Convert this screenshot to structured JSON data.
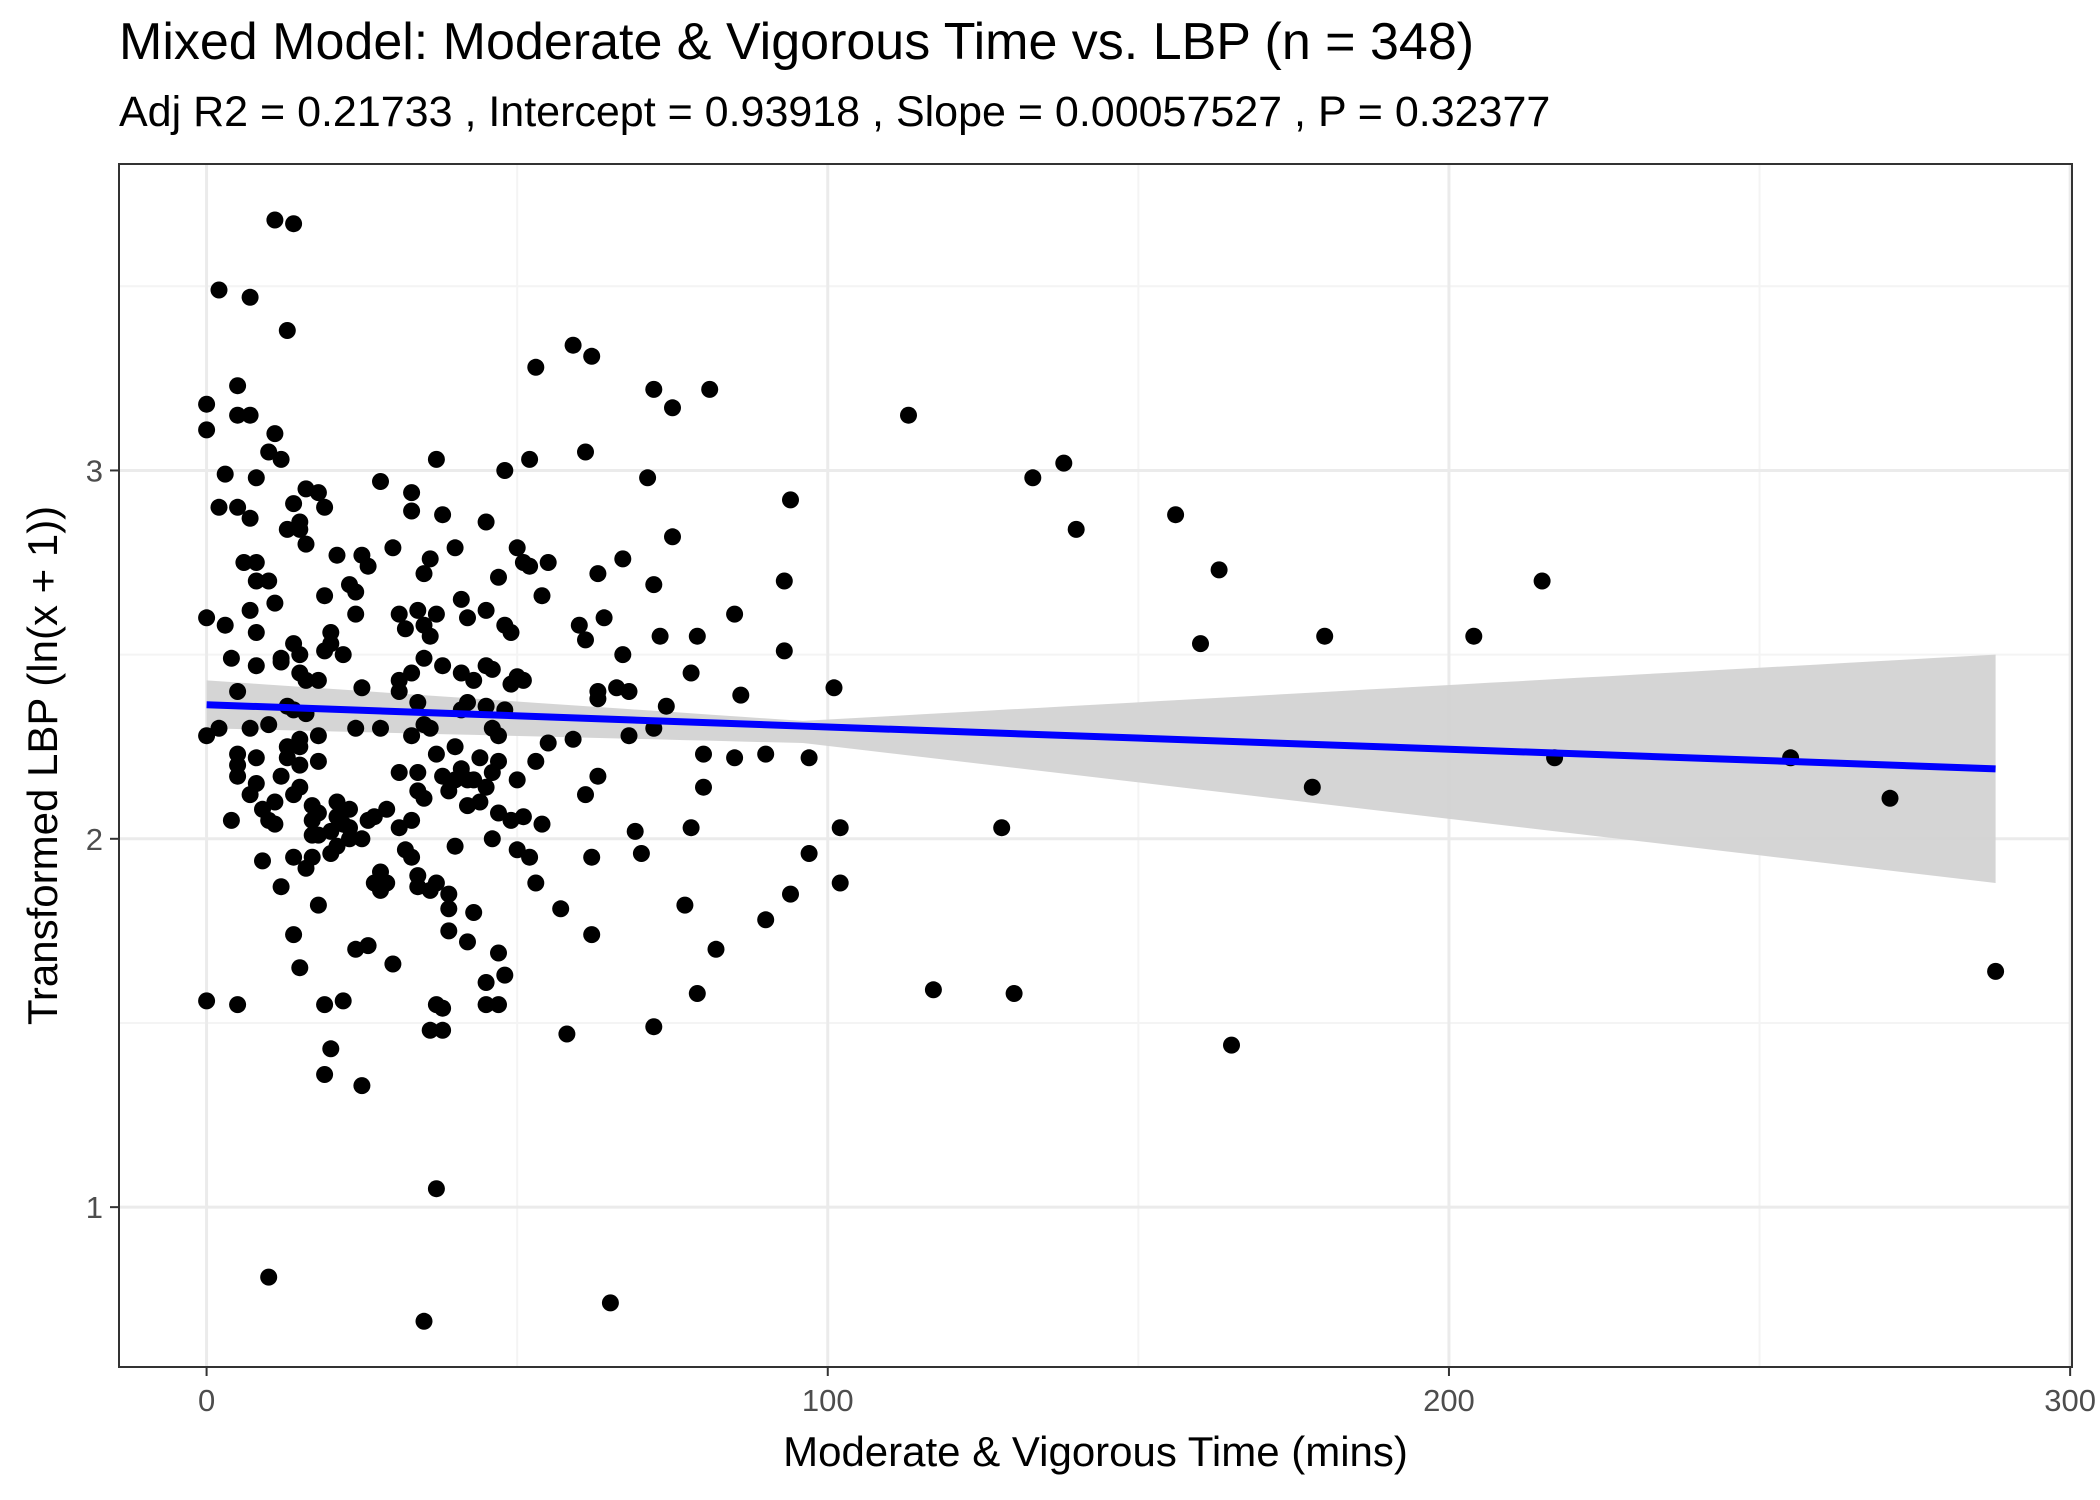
{
  "chart_data": {
    "type": "scatter",
    "title": "Mixed Model: Moderate & Vigorous Time vs. LBP (n = 348)",
    "subtitle": "Adj R2 =  0.21733 , Intercept =  0.93918 , Slope =  0.00057527 , P =  0.32377",
    "xlabel": "Moderate & Vigorous Time (mins)",
    "ylabel": "Transformed LBP (ln(x + 1))",
    "xlim": [
      -14.1,
      300.3
    ],
    "ylim": [
      0.566,
      3.832
    ],
    "x_ticks": [
      0,
      100,
      200,
      300
    ],
    "y_ticks": [
      1,
      2,
      3
    ],
    "x_tick_labels": [
      "0",
      "100",
      "200",
      "300"
    ],
    "y_tick_labels": [
      "1",
      "2",
      "3"
    ],
    "x_minor_grid": [
      50,
      150,
      250
    ],
    "y_minor_grid": [
      1.5,
      2.5,
      3.5
    ],
    "grid": true,
    "legend": "none",
    "colors": {
      "points": "#000000",
      "fit_line": "#0000ff",
      "confidence_band": "#d3d3d3",
      "panel_border": "#333333",
      "grid_major": "#ebebeb",
      "grid_minor": "#f4f4f4"
    },
    "fit_line": {
      "x": [
        0,
        288
      ],
      "y": [
        2.364,
        2.19
      ]
    },
    "confidence_band": {
      "x": [
        0,
        96,
        288
      ],
      "lower": [
        2.3,
        2.26,
        1.88
      ],
      "upper": [
        2.43,
        2.32,
        2.5
      ]
    },
    "points": [
      [
        0,
        3.18
      ],
      [
        0,
        3.11
      ],
      [
        0,
        2.6
      ],
      [
        0,
        2.28
      ],
      [
        0,
        1.56
      ],
      [
        2,
        3.49
      ],
      [
        2,
        2.9
      ],
      [
        2,
        2.3
      ],
      [
        3,
        2.99
      ],
      [
        3,
        2.58
      ],
      [
        4,
        2.49
      ],
      [
        4,
        2.05
      ],
      [
        5,
        3.23
      ],
      [
        5,
        3.15
      ],
      [
        5,
        2.9
      ],
      [
        5,
        2.4
      ],
      [
        5,
        2.23
      ],
      [
        5,
        2.2
      ],
      [
        5,
        2.17
      ],
      [
        5,
        1.55
      ],
      [
        6,
        2.75
      ],
      [
        7,
        3.47
      ],
      [
        7,
        3.15
      ],
      [
        7,
        2.87
      ],
      [
        7,
        2.62
      ],
      [
        7,
        2.3
      ],
      [
        7,
        2.12
      ],
      [
        8,
        2.98
      ],
      [
        8,
        2.75
      ],
      [
        8,
        2.7
      ],
      [
        8,
        2.56
      ],
      [
        8,
        2.47
      ],
      [
        8,
        2.22
      ],
      [
        8,
        2.15
      ],
      [
        9,
        2.08
      ],
      [
        9,
        1.94
      ],
      [
        10,
        3.05
      ],
      [
        10,
        2.7
      ],
      [
        10,
        2.31
      ],
      [
        10,
        2.05
      ],
      [
        10,
        0.81
      ],
      [
        11,
        3.68
      ],
      [
        11,
        3.1
      ],
      [
        11,
        2.64
      ],
      [
        11,
        2.1
      ],
      [
        11,
        2.04
      ],
      [
        12,
        3.03
      ],
      [
        12,
        2.49
      ],
      [
        12,
        2.48
      ],
      [
        12,
        2.17
      ],
      [
        12,
        1.87
      ],
      [
        13,
        3.38
      ],
      [
        13,
        2.84
      ],
      [
        13,
        2.36
      ],
      [
        13,
        2.25
      ],
      [
        13,
        2.22
      ],
      [
        14,
        3.67
      ],
      [
        14,
        2.91
      ],
      [
        14,
        2.53
      ],
      [
        14,
        2.35
      ],
      [
        14,
        2.12
      ],
      [
        14,
        1.95
      ],
      [
        14,
        1.74
      ],
      [
        15,
        2.86
      ],
      [
        15,
        2.84
      ],
      [
        15,
        2.5
      ],
      [
        15,
        2.45
      ],
      [
        15,
        2.27
      ],
      [
        15,
        2.25
      ],
      [
        15,
        2.2
      ],
      [
        15,
        2.14
      ],
      [
        15,
        1.65
      ],
      [
        16,
        2.95
      ],
      [
        16,
        2.8
      ],
      [
        16,
        2.43
      ],
      [
        16,
        2.34
      ],
      [
        16,
        1.92
      ],
      [
        17,
        2.09
      ],
      [
        17,
        2.05
      ],
      [
        17,
        2.01
      ],
      [
        17,
        1.95
      ],
      [
        18,
        2.94
      ],
      [
        18,
        2.43
      ],
      [
        18,
        2.28
      ],
      [
        18,
        2.21
      ],
      [
        18,
        2.07
      ],
      [
        18,
        2.01
      ],
      [
        18,
        1.82
      ],
      [
        19,
        2.9
      ],
      [
        19,
        2.66
      ],
      [
        19,
        2.51
      ],
      [
        19,
        1.55
      ],
      [
        19,
        1.36
      ],
      [
        20,
        2.56
      ],
      [
        20,
        2.53
      ],
      [
        20,
        2.02
      ],
      [
        20,
        1.96
      ],
      [
        20,
        1.43
      ],
      [
        21,
        2.77
      ],
      [
        21,
        2.1
      ],
      [
        21,
        2.06
      ],
      [
        21,
        1.98
      ],
      [
        22,
        2.5
      ],
      [
        22,
        2.04
      ],
      [
        22,
        1.56
      ],
      [
        23,
        2.69
      ],
      [
        23,
        2.08
      ],
      [
        23,
        2.03
      ],
      [
        23,
        2.0
      ],
      [
        24,
        2.67
      ],
      [
        24,
        2.61
      ],
      [
        24,
        2.3
      ],
      [
        24,
        1.7
      ],
      [
        25,
        2.77
      ],
      [
        25,
        2.41
      ],
      [
        25,
        2.0
      ],
      [
        25,
        1.33
      ],
      [
        26,
        2.74
      ],
      [
        26,
        2.05
      ],
      [
        26,
        1.71
      ],
      [
        27,
        2.06
      ],
      [
        27,
        1.88
      ],
      [
        28,
        2.97
      ],
      [
        28,
        2.3
      ],
      [
        28,
        1.86
      ],
      [
        28,
        1.91
      ],
      [
        29,
        2.08
      ],
      [
        29,
        1.88
      ],
      [
        30,
        2.79
      ],
      [
        30,
        1.66
      ],
      [
        31,
        2.61
      ],
      [
        31,
        2.43
      ],
      [
        31,
        2.4
      ],
      [
        31,
        2.18
      ],
      [
        31,
        2.03
      ],
      [
        32,
        2.57
      ],
      [
        32,
        1.97
      ],
      [
        33,
        2.94
      ],
      [
        33,
        2.89
      ],
      [
        33,
        2.45
      ],
      [
        33,
        2.28
      ],
      [
        33,
        2.05
      ],
      [
        33,
        1.95
      ],
      [
        34,
        2.62
      ],
      [
        34,
        2.37
      ],
      [
        34,
        2.18
      ],
      [
        34,
        2.13
      ],
      [
        34,
        1.9
      ],
      [
        34,
        1.87
      ],
      [
        35,
        2.72
      ],
      [
        35,
        2.58
      ],
      [
        35,
        2.49
      ],
      [
        35,
        2.31
      ],
      [
        35,
        2.11
      ],
      [
        35,
        0.69
      ],
      [
        36,
        2.76
      ],
      [
        36,
        2.55
      ],
      [
        36,
        2.3
      ],
      [
        36,
        1.48
      ],
      [
        36,
        1.86
      ],
      [
        37,
        3.03
      ],
      [
        37,
        2.61
      ],
      [
        37,
        2.23
      ],
      [
        37,
        1.88
      ],
      [
        37,
        1.55
      ],
      [
        37,
        1.05
      ],
      [
        38,
        2.88
      ],
      [
        38,
        2.47
      ],
      [
        38,
        2.17
      ],
      [
        38,
        1.48
      ],
      [
        38,
        1.54
      ],
      [
        39,
        2.13
      ],
      [
        39,
        1.85
      ],
      [
        39,
        1.81
      ],
      [
        39,
        1.75
      ],
      [
        40,
        2.79
      ],
      [
        40,
        2.25
      ],
      [
        40,
        2.16
      ],
      [
        40,
        1.98
      ],
      [
        41,
        2.65
      ],
      [
        41,
        2.45
      ],
      [
        41,
        2.35
      ],
      [
        41,
        2.19
      ],
      [
        42,
        2.6
      ],
      [
        42,
        2.37
      ],
      [
        42,
        2.16
      ],
      [
        42,
        2.09
      ],
      [
        42,
        1.72
      ],
      [
        43,
        2.43
      ],
      [
        43,
        2.16
      ],
      [
        43,
        1.8
      ],
      [
        44,
        2.22
      ],
      [
        44,
        2.1
      ],
      [
        45,
        2.86
      ],
      [
        45,
        2.62
      ],
      [
        45,
        2.47
      ],
      [
        45,
        2.36
      ],
      [
        45,
        2.14
      ],
      [
        45,
        1.55
      ],
      [
        45,
        1.61
      ],
      [
        46,
        2.46
      ],
      [
        46,
        2.3
      ],
      [
        46,
        2.0
      ],
      [
        46,
        2.18
      ],
      [
        47,
        2.71
      ],
      [
        47,
        2.28
      ],
      [
        47,
        2.21
      ],
      [
        47,
        2.07
      ],
      [
        47,
        1.69
      ],
      [
        47,
        1.55
      ],
      [
        48,
        3.0
      ],
      [
        48,
        2.58
      ],
      [
        48,
        2.35
      ],
      [
        48,
        1.63
      ],
      [
        49,
        2.56
      ],
      [
        49,
        2.42
      ],
      [
        49,
        2.05
      ],
      [
        50,
        2.79
      ],
      [
        50,
        2.44
      ],
      [
        50,
        2.16
      ],
      [
        50,
        1.97
      ],
      [
        51,
        2.75
      ],
      [
        51,
        2.43
      ],
      [
        51,
        2.06
      ],
      [
        52,
        3.03
      ],
      [
        52,
        2.74
      ],
      [
        52,
        1.95
      ],
      [
        53,
        3.28
      ],
      [
        53,
        2.21
      ],
      [
        53,
        1.88
      ],
      [
        54,
        2.66
      ],
      [
        54,
        2.04
      ],
      [
        55,
        2.75
      ],
      [
        55,
        2.26
      ],
      [
        57,
        1.81
      ],
      [
        58,
        1.47
      ],
      [
        59,
        3.34
      ],
      [
        59,
        2.27
      ],
      [
        60,
        2.58
      ],
      [
        61,
        3.05
      ],
      [
        61,
        2.54
      ],
      [
        61,
        2.12
      ],
      [
        62,
        3.31
      ],
      [
        62,
        1.95
      ],
      [
        62,
        1.74
      ],
      [
        63,
        2.72
      ],
      [
        63,
        2.4
      ],
      [
        63,
        2.38
      ],
      [
        63,
        2.17
      ],
      [
        64,
        2.6
      ],
      [
        65,
        0.74
      ],
      [
        66,
        2.41
      ],
      [
        67,
        2.76
      ],
      [
        67,
        2.5
      ],
      [
        68,
        2.4
      ],
      [
        68,
        2.28
      ],
      [
        69,
        2.02
      ],
      [
        70,
        1.96
      ],
      [
        71,
        2.98
      ],
      [
        72,
        3.22
      ],
      [
        72,
        2.69
      ],
      [
        72,
        2.3
      ],
      [
        72,
        1.49
      ],
      [
        73,
        2.55
      ],
      [
        74,
        2.36
      ],
      [
        75,
        3.17
      ],
      [
        75,
        2.82
      ],
      [
        77,
        1.82
      ],
      [
        78,
        2.45
      ],
      [
        78,
        2.03
      ],
      [
        79,
        2.55
      ],
      [
        79,
        1.58
      ],
      [
        80,
        2.23
      ],
      [
        80,
        2.14
      ],
      [
        81,
        3.22
      ],
      [
        82,
        1.7
      ],
      [
        85,
        2.61
      ],
      [
        85,
        2.22
      ],
      [
        86,
        2.39
      ],
      [
        90,
        2.23
      ],
      [
        90,
        1.78
      ],
      [
        93,
        2.51
      ],
      [
        93,
        2.7
      ],
      [
        94,
        2.92
      ],
      [
        94,
        1.85
      ],
      [
        97,
        2.22
      ],
      [
        97,
        1.96
      ],
      [
        101,
        2.41
      ],
      [
        102,
        2.03
      ],
      [
        102,
        1.88
      ],
      [
        113,
        3.15
      ],
      [
        117,
        1.59
      ],
      [
        128,
        2.03
      ],
      [
        130,
        1.58
      ],
      [
        133,
        2.98
      ],
      [
        138,
        3.02
      ],
      [
        140,
        2.84
      ],
      [
        156,
        2.88
      ],
      [
        160,
        2.53
      ],
      [
        163,
        2.73
      ],
      [
        165,
        1.44
      ],
      [
        178,
        2.14
      ],
      [
        180,
        2.55
      ],
      [
        204,
        2.55
      ],
      [
        215,
        2.7
      ],
      [
        217,
        2.22
      ],
      [
        255,
        2.22
      ],
      [
        271,
        2.11
      ],
      [
        288,
        1.64
      ]
    ]
  }
}
